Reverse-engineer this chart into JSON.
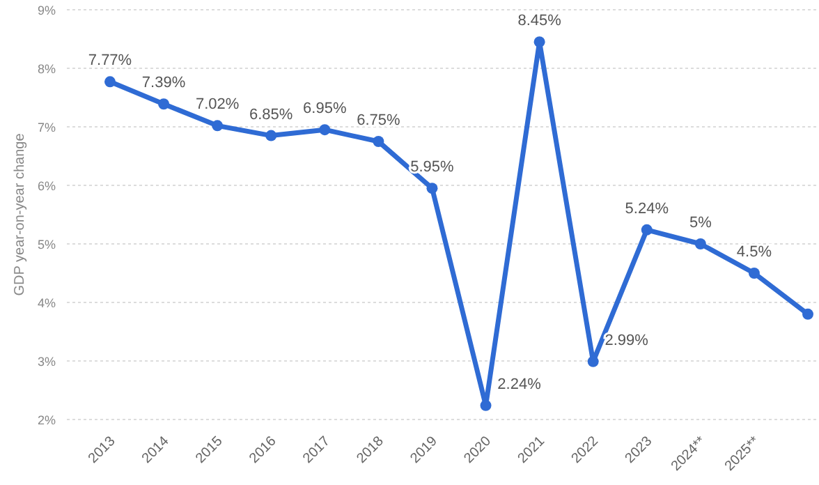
{
  "chart_data": {
    "type": "line",
    "ylabel": "GDP year-on-year change",
    "categories": [
      "2013",
      "2014",
      "2015",
      "2016",
      "2017",
      "2018",
      "2019",
      "2020",
      "2021",
      "2022",
      "2023",
      "2024**",
      "2025**",
      null
    ],
    "series": [
      {
        "color": "#2f6bd4",
        "values": [
          7.77,
          7.39,
          7.02,
          6.85,
          6.95,
          6.75,
          5.95,
          2.24,
          8.45,
          2.99,
          5.24,
          5,
          4.5,
          3.8
        ],
        "value_labels": [
          "7.77%",
          "7.39%",
          "7.02%",
          "6.85%",
          "6.95%",
          "6.75%",
          "5.95%",
          "2.24%",
          "8.45%",
          "2.99%",
          "5.24%",
          "5%",
          "4.5%",
          null
        ]
      }
    ],
    "ylim": [
      2,
      9
    ],
    "yticks": [
      {
        "value": 2,
        "label": "2%"
      },
      {
        "value": 3,
        "label": "3%"
      },
      {
        "value": 4,
        "label": "4%"
      },
      {
        "value": 5,
        "label": "5%"
      },
      {
        "value": 6,
        "label": "6%"
      },
      {
        "value": 7,
        "label": "7%"
      },
      {
        "value": 8,
        "label": "8%"
      },
      {
        "value": 9,
        "label": "9%"
      }
    ],
    "grid": "y",
    "marker": "circle",
    "line_style": "solid"
  }
}
